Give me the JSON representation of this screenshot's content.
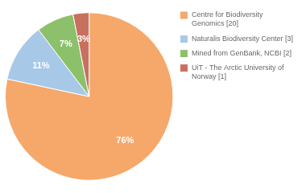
{
  "chart_data": {
    "type": "pie",
    "categories": [
      "Centre for Biodiversity\nGenomics [20]",
      "Naturalis Biodiversity Center [3]",
      "Mined from GenBank, NCBI [2]",
      "UiT - The Arctic University of\nNorway [1]"
    ],
    "values": [
      76,
      11,
      7,
      3
    ],
    "value_labels": [
      "76%",
      "11%",
      "7%",
      "3%"
    ],
    "colors": [
      "#F5A86A",
      "#A8C8E8",
      "#8DC06A",
      "#C87060"
    ],
    "data_labels": true,
    "legend": "right"
  }
}
